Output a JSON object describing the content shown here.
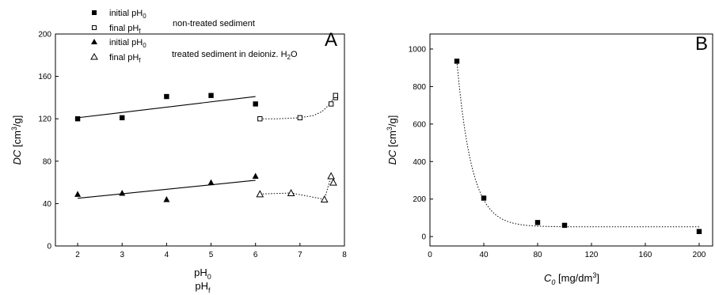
{
  "chart_data": [
    {
      "type": "scatter",
      "panel_label": "A",
      "xlabel_line1": {
        "main": "pH",
        "sub": "0"
      },
      "xlabel_line2": {
        "main": "pH",
        "sub": "f"
      },
      "ylabel": {
        "italic": "DC",
        "pre": " [cm",
        "sup": "3",
        "post": "/g]"
      },
      "xlim": [
        1.5,
        8
      ],
      "ylim": [
        0,
        200
      ],
      "xticks": [
        2,
        3,
        4,
        5,
        6,
        7,
        8
      ],
      "yticks": [
        0,
        40,
        80,
        120,
        160,
        200
      ],
      "legend": [
        {
          "marker": "square-filled",
          "text": {
            "main": "initial pH",
            "sub": "0"
          },
          "group": "non-treated sediment"
        },
        {
          "marker": "square-open",
          "text": {
            "main": "final pH",
            "sub": "f"
          },
          "group": ""
        },
        {
          "marker": "triangle-filled",
          "text": {
            "main": "initial pH",
            "sub": "0"
          },
          "group": "treated sediment in deioniz. H",
          "group_sub": "2",
          "group_post": "O"
        },
        {
          "marker": "triangle-open",
          "text": {
            "main": "final pH",
            "sub": "f"
          },
          "group": ""
        }
      ],
      "series": [
        {
          "marker": "square-filled",
          "fit": "solid-line",
          "x": [
            2,
            3,
            4,
            5,
            6
          ],
          "y": [
            120,
            121,
            141,
            142,
            134
          ],
          "fit_line": [
            [
              2,
              121
            ],
            [
              6,
              141
            ]
          ]
        },
        {
          "marker": "square-open",
          "fit": "dotted-curve",
          "x": [
            6.1,
            7.0,
            7.7,
            7.8,
            7.8
          ],
          "y": [
            120,
            121,
            134,
            140,
            142
          ]
        },
        {
          "marker": "triangle-filled",
          "fit": "solid-line",
          "x": [
            2,
            3,
            4,
            5,
            6
          ],
          "y": [
            49,
            50,
            44,
            60,
            66
          ],
          "fit_line": [
            [
              2,
              45
            ],
            [
              6,
              62
            ]
          ]
        },
        {
          "marker": "triangle-open",
          "fit": "dotted-line",
          "x": [
            6.1,
            6.8,
            7.55,
            7.7,
            7.75
          ],
          "y": [
            49,
            50,
            44,
            66,
            60
          ]
        }
      ]
    },
    {
      "type": "scatter",
      "panel_label": "B",
      "xlabel": {
        "italic": "C",
        "sub": "0",
        "post": " [mg/dm",
        "sup": "3",
        "end": "]"
      },
      "ylabel": {
        "italic": "DC",
        "pre": " [cm",
        "sup": "3",
        "post": "/g]"
      },
      "xlim": [
        0,
        210
      ],
      "ylim": [
        -50,
        1080
      ],
      "xticks": [
        0,
        40,
        80,
        120,
        160,
        200
      ],
      "yticks": [
        0,
        200,
        400,
        600,
        800,
        1000
      ],
      "series": [
        {
          "marker": "square-filled",
          "fit": "dotted-exponential-decay",
          "x": [
            20,
            40,
            80,
            100,
            200
          ],
          "y": [
            935,
            205,
            75,
            60,
            27
          ]
        }
      ]
    }
  ]
}
